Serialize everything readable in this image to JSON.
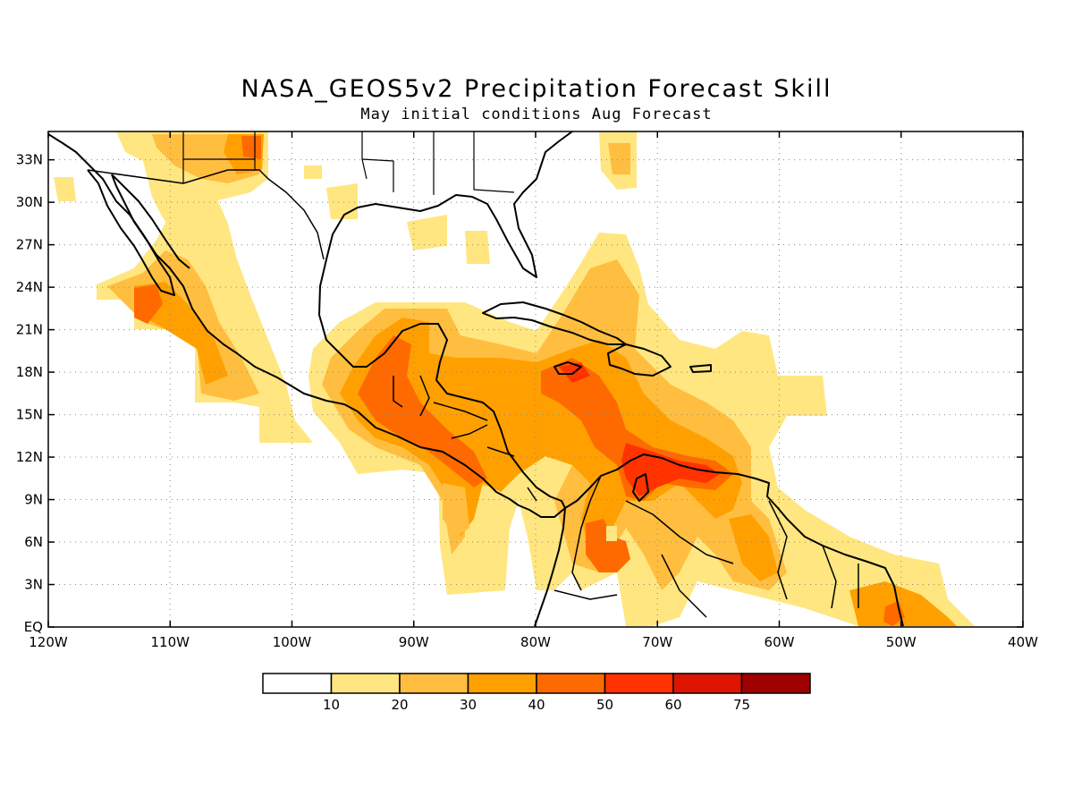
{
  "title": "NASA_GEOS5v2 Precipitation Forecast Skill",
  "subtitle": "May initial conditions  Aug Forecast",
  "axes": {
    "lon_labels": [
      "120W",
      "110W",
      "100W",
      "90W",
      "80W",
      "70W",
      "60W",
      "50W",
      "40W"
    ],
    "lat_labels": [
      "33N",
      "30N",
      "27N",
      "24N",
      "21N",
      "18N",
      "15N",
      "12N",
      "9N",
      "6N",
      "3N",
      "EQ"
    ]
  },
  "colorbar": {
    "tick_labels": [
      "10",
      "20",
      "30",
      "40",
      "50",
      "60",
      "75"
    ],
    "colors": [
      "#ffffff",
      "#ffe680",
      "#ffbe40",
      "#ffa000",
      "#ff6a00",
      "#ff3200",
      "#dc1400",
      "#a00000"
    ]
  },
  "map": {
    "lon_range": [
      -120,
      -40
    ],
    "lat_range": [
      0,
      35
    ],
    "grid": true,
    "variable": "precipitation forecast skill"
  }
}
